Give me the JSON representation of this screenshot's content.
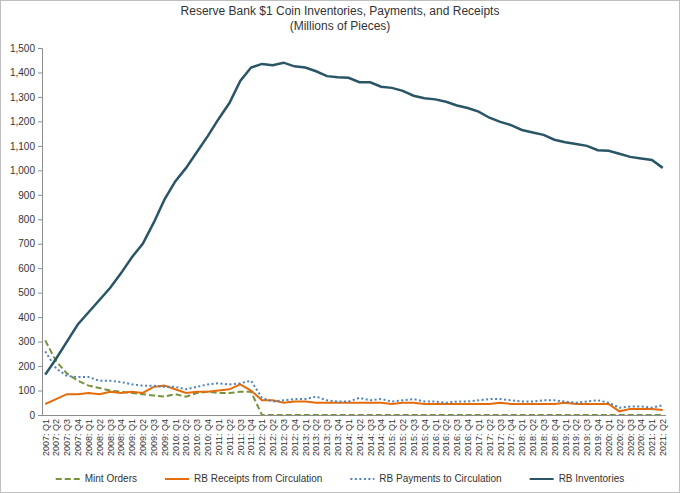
{
  "chart_data": {
    "type": "line",
    "title": "Reserve Bank $1 Coin Inventories, Payments, and Receipts",
    "subtitle": "(Millions of Pieces)",
    "categories": [
      "2007: Q1",
      "2007: Q2",
      "2007: Q3",
      "2007: Q4",
      "2008: Q1",
      "2008: Q2",
      "2008: Q3",
      "2008: Q4",
      "2009: Q1",
      "2009: Q2",
      "2009: Q3",
      "2009: Q4",
      "2010: Q1",
      "2010: Q2",
      "2010: Q3",
      "2010: Q4",
      "2011: Q1",
      "2011: Q2",
      "2011: Q3",
      "2011: Q4",
      "2012: Q1",
      "2012: Q2",
      "2012: Q3",
      "2012: Q4",
      "2013: Q1",
      "2013: Q2",
      "2013: Q3",
      "2013: Q4",
      "2014: Q1",
      "2014: Q2",
      "2014: Q3",
      "2014: Q4",
      "2015: Q1",
      "2015: Q2",
      "2015: Q3",
      "2015: Q4",
      "2016: Q1",
      "2016: Q2",
      "2016: Q3",
      "2016: Q4",
      "2017: Q1",
      "2017: Q2",
      "2017: Q3",
      "2017: Q4",
      "2018: Q1",
      "2018: Q2",
      "2018: Q3",
      "2018: Q4",
      "2019: Q1",
      "2019: Q2",
      "2019: Q3",
      "2019: Q4",
      "2020: Q1",
      "2020: Q2",
      "2020: Q3",
      "2020: Q4",
      "2021: Q1",
      "2021: Q2"
    ],
    "series": [
      {
        "name": "Mint Orders",
        "color": "#77933c",
        "line_style": "dashed",
        "values": [
          305,
          220,
          170,
          140,
          120,
          110,
          100,
          95,
          90,
          85,
          80,
          75,
          85,
          75,
          90,
          95,
          90,
          90,
          95,
          95,
          0,
          0,
          0,
          0,
          0,
          0,
          0,
          0,
          0,
          0,
          0,
          0,
          0,
          0,
          0,
          0,
          0,
          0,
          0,
          0,
          0,
          0,
          0,
          0,
          0,
          0,
          0,
          0,
          0,
          0,
          0,
          0,
          0,
          0,
          0,
          0,
          0,
          0
        ]
      },
      {
        "name": "RB Receipts from Circulation",
        "color": "#e46c0a",
        "line_style": "solid",
        "values": [
          45,
          65,
          85,
          85,
          90,
          85,
          95,
          90,
          95,
          90,
          115,
          120,
          105,
          90,
          95,
          95,
          100,
          105,
          125,
          100,
          60,
          60,
          50,
          55,
          55,
          50,
          50,
          50,
          50,
          50,
          50,
          50,
          45,
          50,
          50,
          45,
          45,
          45,
          45,
          45,
          45,
          45,
          50,
          45,
          45,
          45,
          45,
          45,
          50,
          45,
          45,
          45,
          45,
          15,
          25,
          25,
          25,
          20
        ]
      },
      {
        "name": "RB Payments to Circulation",
        "color": "#4f81bd",
        "line_style": "dotted",
        "values": [
          260,
          190,
          160,
          155,
          155,
          140,
          140,
          135,
          125,
          120,
          120,
          115,
          115,
          105,
          115,
          125,
          130,
          125,
          130,
          140,
          70,
          55,
          60,
          65,
          65,
          75,
          60,
          55,
          55,
          70,
          60,
          65,
          55,
          60,
          65,
          55,
          55,
          50,
          55,
          55,
          60,
          65,
          65,
          60,
          55,
          55,
          60,
          60,
          55,
          50,
          55,
          60,
          50,
          30,
          35,
          35,
          30,
          40
        ]
      },
      {
        "name": "RB Inventories",
        "color": "#2a5567",
        "line_style": "solid",
        "values": [
          165,
          230,
          300,
          370,
          420,
          470,
          520,
          580,
          645,
          700,
          785,
          880,
          955,
          1010,
          1075,
          1140,
          1210,
          1275,
          1365,
          1420,
          1435,
          1430,
          1440,
          1425,
          1420,
          1405,
          1385,
          1380,
          1378,
          1360,
          1360,
          1342,
          1337,
          1325,
          1305,
          1295,
          1290,
          1280,
          1265,
          1255,
          1240,
          1215,
          1198,
          1185,
          1165,
          1155,
          1145,
          1125,
          1115,
          1108,
          1100,
          1082,
          1080,
          1068,
          1055,
          1048,
          1042,
          1010
        ]
      }
    ],
    "ylim": [
      0,
      1500
    ],
    "yticks": [
      0,
      100,
      200,
      300,
      400,
      500,
      600,
      700,
      800,
      900,
      {
        "value": 1000,
        "label": "1,000"
      },
      {
        "value": 1100,
        "label": "1,100"
      },
      {
        "value": 1200,
        "label": "1,200"
      },
      {
        "value": 1300,
        "label": "1,300"
      },
      {
        "value": 1400,
        "label": "1,400"
      },
      {
        "value": 1500,
        "label": "1,500"
      }
    ],
    "grid": false,
    "legend": "bottom"
  }
}
